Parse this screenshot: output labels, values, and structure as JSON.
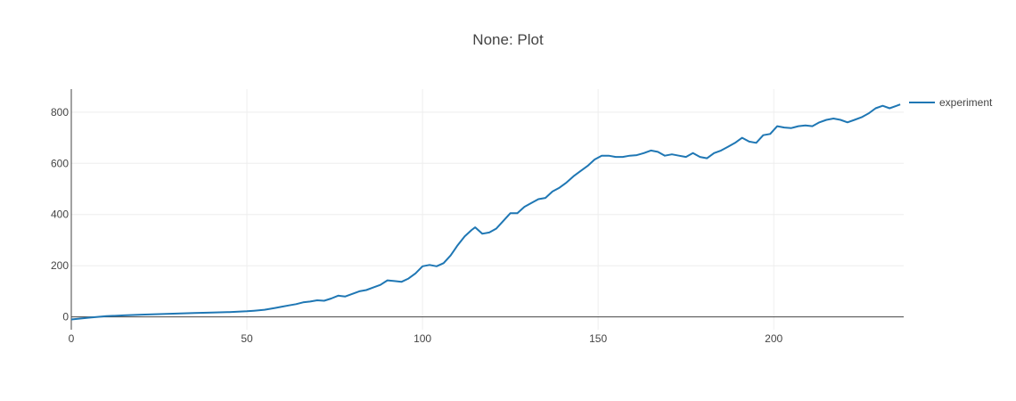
{
  "chart_data": {
    "type": "line",
    "title": "None: Plot",
    "xlabel": "",
    "ylabel": "",
    "xlim": [
      0,
      237
    ],
    "ylim": [
      -50,
      890
    ],
    "xticks": [
      0,
      50,
      100,
      150,
      200
    ],
    "yticks": [
      0,
      200,
      400,
      600,
      800
    ],
    "grid": true,
    "legend_position": "right",
    "colors": {
      "series": "#1f77b4",
      "grid": "#eeeeee",
      "axis": "#444444",
      "text": "#444444"
    },
    "series": [
      {
        "name": "experiment",
        "x": [
          0,
          5,
          10,
          15,
          20,
          25,
          30,
          35,
          40,
          45,
          50,
          52,
          55,
          58,
          60,
          62,
          64,
          66,
          68,
          70,
          72,
          74,
          76,
          78,
          80,
          82,
          84,
          86,
          88,
          90,
          92,
          94,
          96,
          98,
          100,
          102,
          104,
          106,
          108,
          110,
          112,
          114,
          115,
          117,
          119,
          121,
          123,
          125,
          127,
          129,
          131,
          133,
          135,
          137,
          139,
          141,
          143,
          145,
          147,
          149,
          151,
          153,
          155,
          157,
          159,
          161,
          163,
          165,
          167,
          169,
          171,
          173,
          175,
          177,
          179,
          181,
          183,
          185,
          187,
          189,
          191,
          193,
          195,
          197,
          199,
          201,
          203,
          205,
          207,
          209,
          211,
          213,
          215,
          217,
          219,
          221,
          223,
          225,
          227,
          229,
          231,
          233,
          235,
          236
        ],
        "y": [
          -10,
          -3,
          3,
          6,
          9,
          11,
          13,
          15,
          17,
          19,
          22,
          24,
          28,
          35,
          40,
          45,
          50,
          57,
          60,
          65,
          63,
          72,
          83,
          80,
          90,
          100,
          105,
          115,
          125,
          143,
          140,
          137,
          150,
          170,
          198,
          203,
          198,
          210,
          240,
          280,
          315,
          340,
          350,
          325,
          330,
          345,
          375,
          405,
          405,
          430,
          445,
          460,
          465,
          490,
          505,
          525,
          550,
          570,
          590,
          615,
          630,
          630,
          625,
          625,
          630,
          632,
          640,
          650,
          645,
          630,
          635,
          630,
          625,
          640,
          625,
          620,
          640,
          650,
          665,
          680,
          700,
          685,
          680,
          710,
          715,
          745,
          740,
          738,
          745,
          748,
          745,
          760,
          770,
          775,
          770,
          760,
          770,
          780,
          795,
          815,
          825,
          815,
          825,
          830
        ]
      }
    ]
  }
}
